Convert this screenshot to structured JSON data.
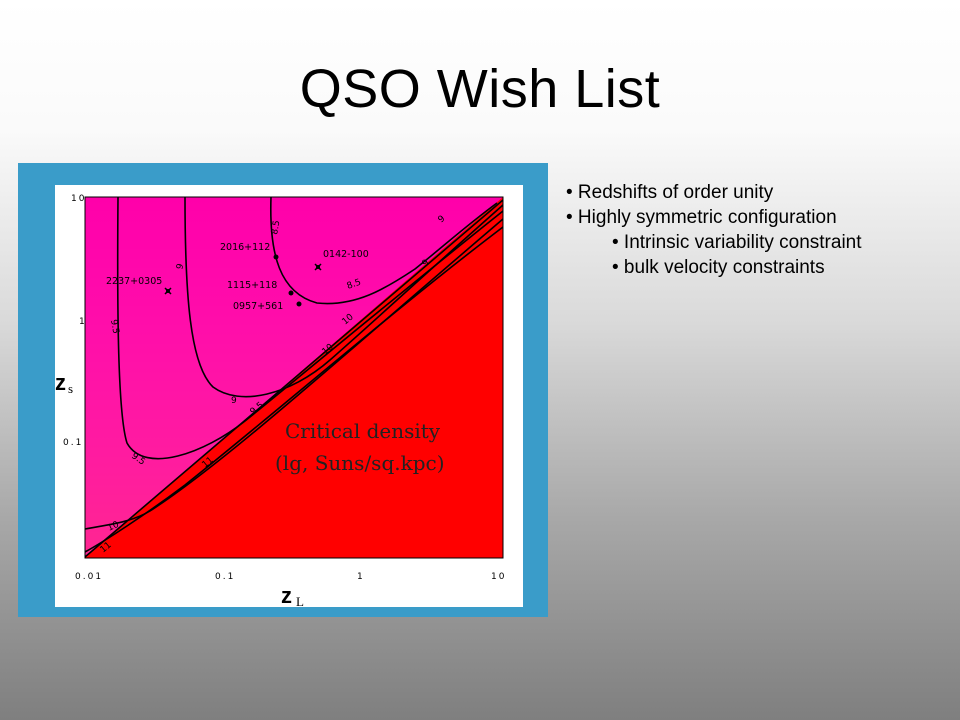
{
  "slide": {
    "title": "QSO Wish List"
  },
  "bullets": [
    {
      "level": 1,
      "text": "• Redshifts of order unity"
    },
    {
      "level": 1,
      "text": "• Highly symmetric configuration"
    },
    {
      "level": 2,
      "text": "• Intrinsic variability constraint"
    },
    {
      "level": 2,
      "text": "• bulk velocity constraints"
    }
  ],
  "figure": {
    "frame_color": "#3a9cc9",
    "x_axis": {
      "symbol": "z",
      "subscript": "L",
      "ticks": [
        "0.01",
        "0.1",
        "1",
        "10"
      ]
    },
    "y_axis": {
      "symbol": "z",
      "subscript": "s",
      "ticks": [
        "10",
        "1",
        "0.1"
      ]
    },
    "annotation_line1": "Critical density",
    "annotation_line2": "(lg, Suns/sq.kpc)",
    "forbidden_region_color": "#ff0000",
    "qsos": [
      {
        "name": "2237+0305"
      },
      {
        "name": "2016+112"
      },
      {
        "name": "0142-100"
      },
      {
        "name": "1115+118"
      },
      {
        "name": "0957+561"
      }
    ],
    "contour_labels": [
      "8.5",
      "8.5",
      "9",
      "9",
      "9",
      "9",
      "9.5",
      "9.5",
      "9.5",
      "10",
      "10",
      "10",
      "11",
      "11"
    ]
  }
}
